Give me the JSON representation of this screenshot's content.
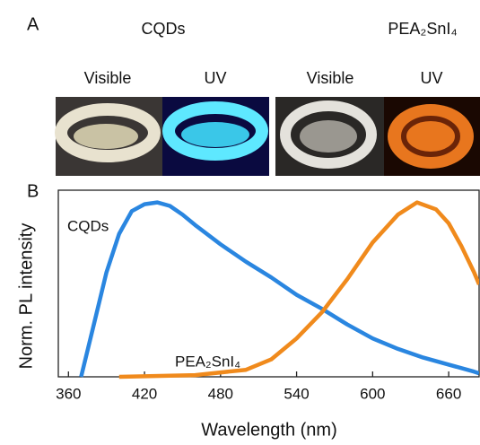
{
  "panel_a": {
    "label": "A",
    "groups": [
      {
        "name": "CQDs",
        "color": "#1e88e5",
        "photos": [
          "Visible",
          "UV"
        ]
      },
      {
        "name": "PEA₂SnI₄",
        "color": "#f08a1c",
        "photos": [
          "Visible",
          "UV"
        ]
      }
    ]
  },
  "chart_data": {
    "type": "line",
    "panel_label": "B",
    "x_label": "Wavelength (nm)",
    "y_label": "Norm. PL intensity",
    "xlim": [
      352,
      684
    ],
    "ylim": [
      0,
      1.07
    ],
    "xticks": [
      360,
      420,
      480,
      540,
      600,
      660
    ],
    "series": [
      {
        "name": "CQDs",
        "color": "#2a86e0",
        "x": [
          370,
          380,
          390,
          400,
          410,
          420,
          430,
          440,
          450,
          460,
          480,
          500,
          520,
          540,
          560,
          580,
          600,
          620,
          640,
          660,
          680,
          684
        ],
        "values": [
          0,
          0.3,
          0.6,
          0.82,
          0.95,
          0.99,
          1.0,
          0.98,
          0.93,
          0.87,
          0.76,
          0.66,
          0.57,
          0.47,
          0.39,
          0.3,
          0.22,
          0.16,
          0.11,
          0.07,
          0.03,
          0.02
        ]
      },
      {
        "name": "PEA₂SnI₄",
        "color": "#f08a1c",
        "x": [
          400,
          460,
          500,
          520,
          540,
          560,
          580,
          600,
          620,
          635,
          650,
          660,
          670,
          680,
          684
        ],
        "values": [
          0,
          0.01,
          0.04,
          0.1,
          0.22,
          0.37,
          0.56,
          0.77,
          0.93,
          1.0,
          0.96,
          0.88,
          0.75,
          0.6,
          0.53
        ]
      }
    ]
  }
}
